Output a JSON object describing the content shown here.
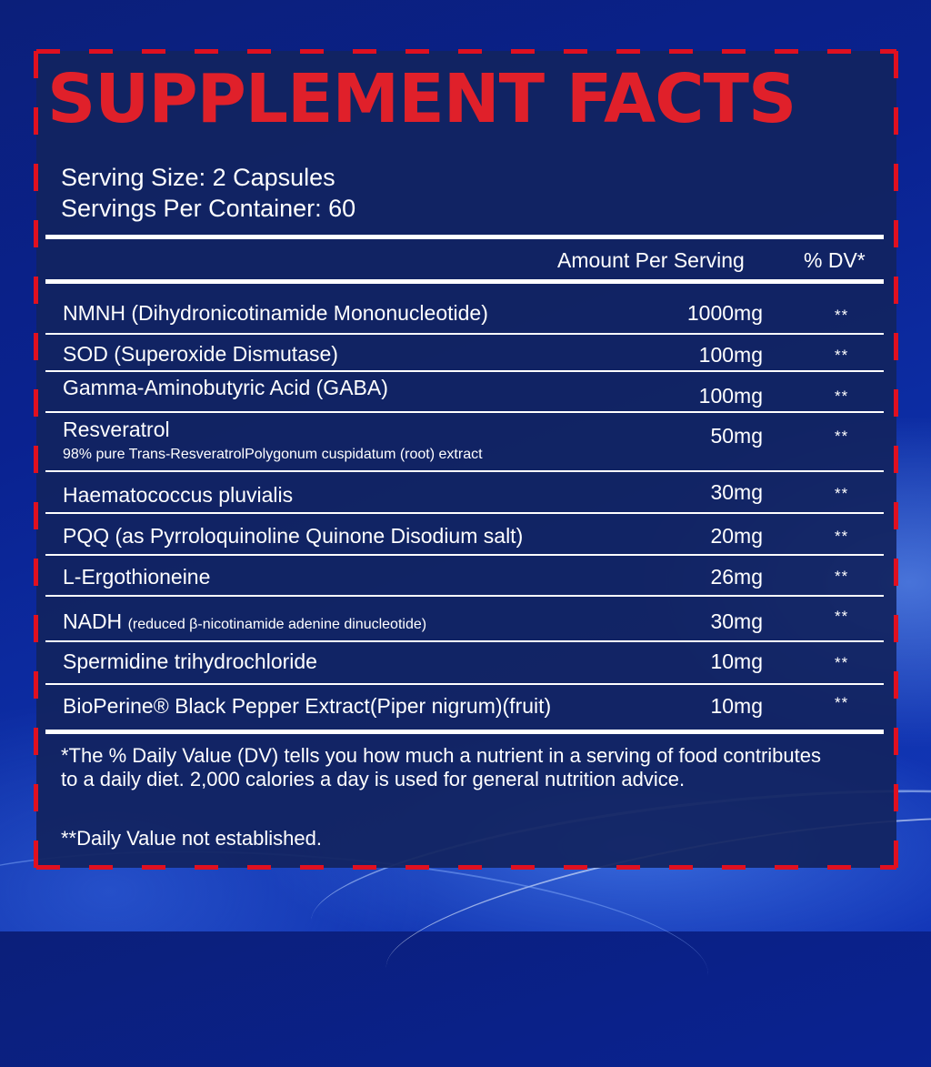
{
  "title": "SUPPLEMENT FACTS",
  "serving_size": "Serving Size: 2 Capsules",
  "servings_per_container": "Servings Per Container: 60",
  "header": {
    "amount": "Amount Per Serving",
    "dv": "% DV*"
  },
  "rows": [
    {
      "name": "NMNH (Dihydronicotinamide Mononucleotide)",
      "amount": "1000mg",
      "dv": "**"
    },
    {
      "name": "SOD (Superoxide Dismutase)",
      "amount": "100mg",
      "dv": "**"
    },
    {
      "name": "Gamma-Aminobutyric Acid (GABA)",
      "amount": "100mg",
      "dv": "**"
    },
    {
      "name": "Resveratrol",
      "sub": "98% pure Trans-ResveratrolPolygonum cuspidatum (root) extract",
      "amount": "50mg",
      "dv": "**"
    },
    {
      "name": "Haematococcus pluvialis",
      "amount": "30mg",
      "dv": "**"
    },
    {
      "name": "PQQ (as Pyrroloquinoline Quinone Disodium salt)",
      "amount": "20mg",
      "dv": "**"
    },
    {
      "name": "L-Ergothioneine",
      "amount": "26mg",
      "dv": "**"
    },
    {
      "name": "NADH",
      "name_note": "(reduced β-nicotinamide adenine dinucleotide)",
      "amount": "30mg",
      "dv": "**"
    },
    {
      "name": "Spermidine trihydrochloride",
      "amount": "10mg",
      "dv": "**"
    },
    {
      "name": "BioPerine® Black Pepper Extract(Piper nigrum)(fruit)",
      "amount": "10mg",
      "dv": "**"
    }
  ],
  "footnote": "*The % Daily Value (DV) tells you how much a nutrient in a serving of food contributes to a daily diet. 2,000 calories a day is used for general nutrition advice.",
  "not_established": "**Daily Value not established."
}
